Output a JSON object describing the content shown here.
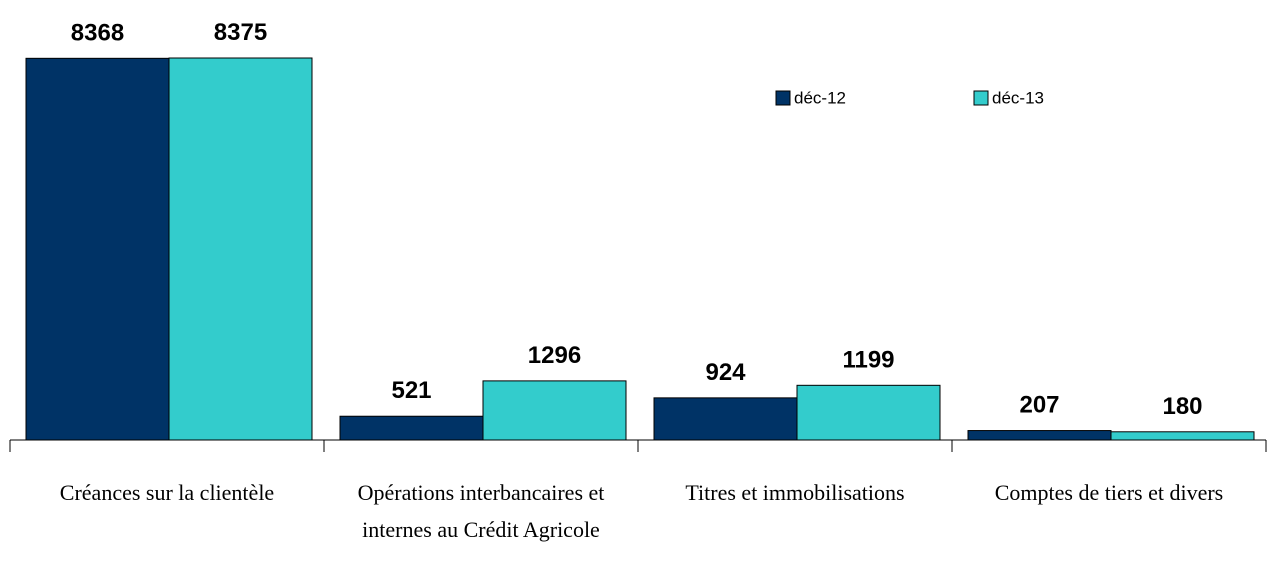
{
  "chart_data": {
    "type": "bar",
    "categories": [
      "Créances sur la clientèle",
      "Opérations interbancaires et internes au Crédit Agricole",
      "Titres et immobilisations",
      "Comptes de tiers et divers"
    ],
    "series": [
      {
        "name": "déc-12",
        "color": "#003366",
        "values": [
          8368,
          521,
          924,
          207
        ]
      },
      {
        "name": "déc-13",
        "color": "#33cccc",
        "values": [
          8375,
          1296,
          1199,
          180
        ]
      }
    ],
    "legend": "top-right"
  }
}
